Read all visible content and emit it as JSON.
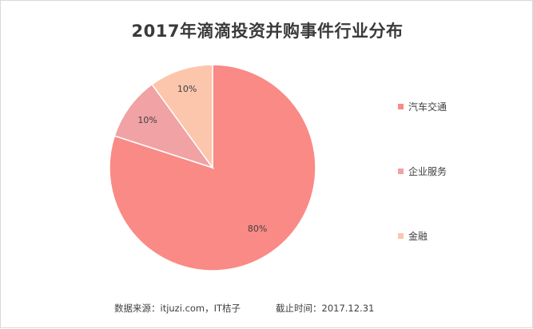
{
  "chart_data": {
    "type": "pie",
    "title": "2017年滴滴投资并购事件行业分布",
    "slices": [
      {
        "label": "汽车交通",
        "value": 80,
        "value_label": "80%",
        "color": "#fa8a85"
      },
      {
        "label": "企业服务",
        "value": 10,
        "value_label": "10%",
        "color": "#f0a2a4"
      },
      {
        "label": "金融",
        "value": 10,
        "value_label": "10%",
        "color": "#fcc6ad"
      }
    ],
    "legend_position": "right"
  },
  "footer": {
    "source": "数据来源：itjuzi.com，IT桔子",
    "cutoff": "截止时间：2017.12.31"
  }
}
